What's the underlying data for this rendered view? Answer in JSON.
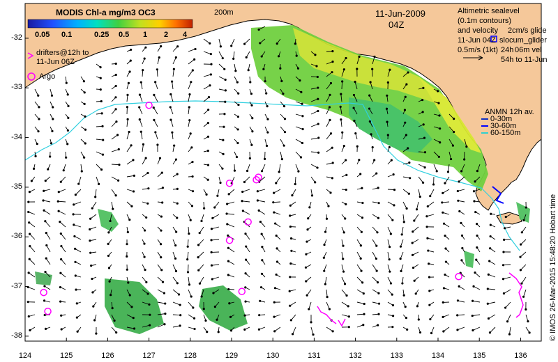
{
  "title": {
    "colorbar_title": "MODIS Chl-a mg/m3 OC3",
    "date": "11-Jun-2009",
    "time": "04Z",
    "isobath_label": "200m"
  },
  "colorbar": {
    "ticks": [
      "0.05",
      "0.1",
      "0.25",
      "0.5",
      "1",
      "2",
      "4"
    ],
    "colors": [
      "#1a1aa0",
      "#2050ff",
      "#00b0ff",
      "#00e0c0",
      "#40d040",
      "#c0e020",
      "#ffd000",
      "#ff7000",
      "#c02000"
    ]
  },
  "legend_left": {
    "drifters_line1": "drifters@12h to",
    "drifters_line2": "11-Jun 06Z",
    "argo": "Argo"
  },
  "legend_right": {
    "line1": "Altimetric sealevel",
    "line2": "(0.1m contours)",
    "line3": "and velocity",
    "line4": "11-Jun 04Z",
    "line5": "0.5m/s (1kt)",
    "glide_line1": "2cm/s glide",
    "glide_line2": "slocum_glider",
    "glide_line3": "24h",
    "glide_line4": "06m vel",
    "glide_line5": "54h to 11-Jun"
  },
  "anmn_legend": {
    "title": "ANMN 12h av.",
    "items": [
      {
        "label": "0-30m",
        "color": "#1030c0"
      },
      {
        "label": "30-60m",
        "color": "#0000ff"
      },
      {
        "label": "60-150m",
        "color": "#30d0d0"
      }
    ]
  },
  "axes": {
    "x_ticks": [
      "124",
      "125",
      "126",
      "127",
      "128",
      "129",
      "130",
      "131",
      "132",
      "133",
      "134",
      "135",
      "136"
    ],
    "y_ticks": [
      "-32",
      "-33",
      "-34",
      "-35",
      "-36",
      "-37",
      "-38"
    ],
    "xlim": [
      124,
      136.5
    ],
    "ylim": [
      -38.1,
      -31.3
    ]
  },
  "credit": "© IMOS 26-Mar-2015 15:48:20 Hobart time",
  "colors": {
    "land": "#f5c89a",
    "isobath": "#30d0e0",
    "argo": "#ff00ff",
    "arrow": "#000000"
  },
  "argo_floats": [
    [
      127.0,
      -33.35
    ],
    [
      128.95,
      -34.92
    ],
    [
      129.6,
      -34.85
    ],
    [
      129.65,
      -34.8
    ],
    [
      129.4,
      -35.7
    ],
    [
      128.95,
      -36.07
    ],
    [
      129.25,
      -37.1
    ],
    [
      124.45,
      -37.12
    ],
    [
      124.55,
      -37.5
    ],
    [
      134.5,
      -36.8
    ]
  ]
}
